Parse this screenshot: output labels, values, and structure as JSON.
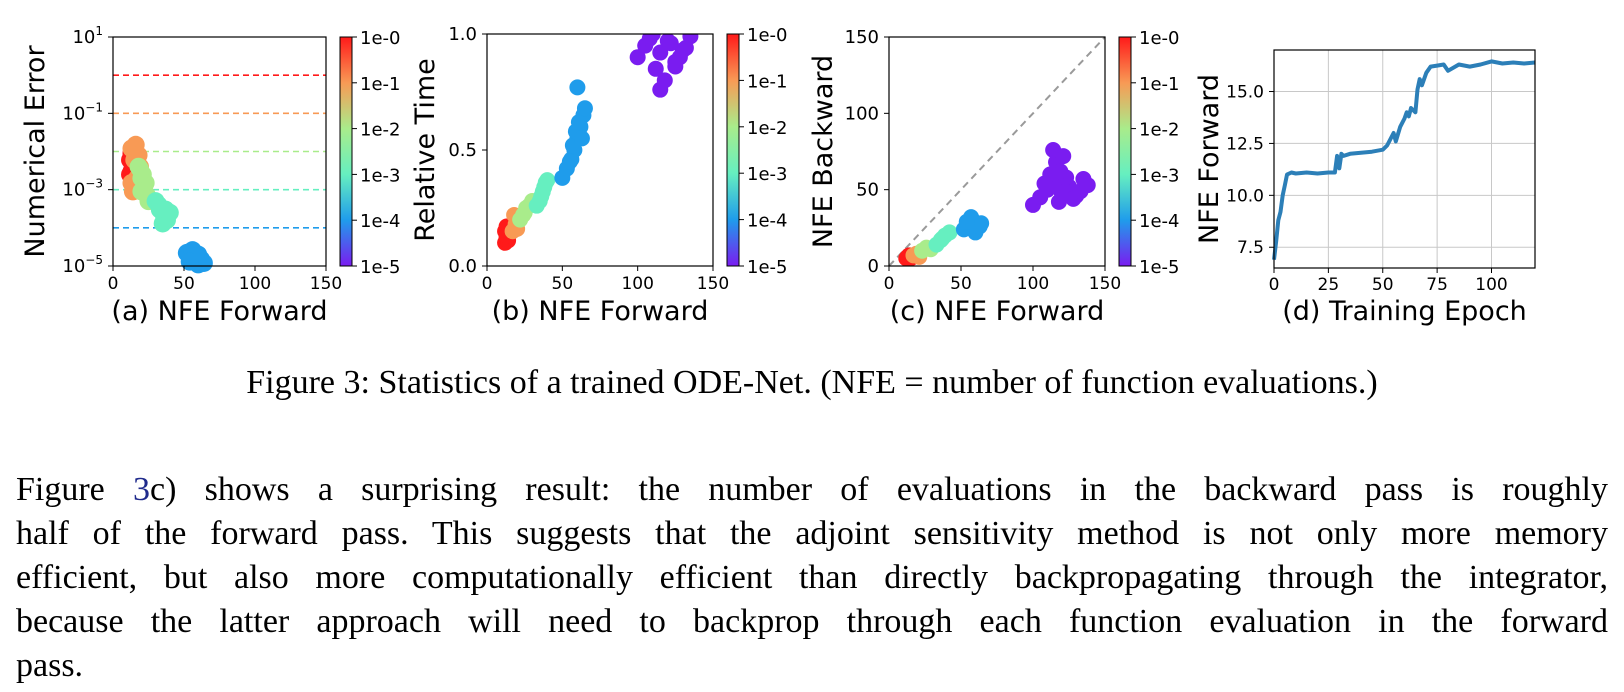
{
  "figure": {
    "caption": "Figure 3: Statistics of a trained ODE-Net. (NFE = number of function evaluations.)",
    "colorbar_ticks": [
      "1e-0",
      "1e-1",
      "1e-2",
      "1e-3",
      "1e-4",
      "1e-5"
    ],
    "colors": {
      "tol_1e0": "#ff1a1a",
      "tol_1e1": "#f89a55",
      "tol_1e2": "#a9ec8b",
      "tol_1e3": "#66efc0",
      "tol_1e4": "#1f9ceb",
      "tol_1e5": "#7a1cf0",
      "line": "#2c7fb8",
      "diagonal": "#9a9a9a"
    }
  },
  "chart_data": [
    {
      "id": "a",
      "type": "scatter",
      "xlabel": "(a) NFE Forward",
      "ylabel": "Numerical Error",
      "xlim": [
        0,
        150
      ],
      "ylim": [
        1e-05,
        10
      ],
      "yscale": "log",
      "xticks": [
        "0",
        "50",
        "100",
        "150"
      ],
      "yticks": [
        {
          "base": "10",
          "exp": "1"
        },
        {
          "base": "10",
          "exp": "−1"
        },
        {
          "base": "10",
          "exp": "−3"
        },
        {
          "base": "10",
          "exp": "−5"
        }
      ],
      "hlines": [
        {
          "y": 1,
          "tol": "1e-0"
        },
        {
          "y": 0.1,
          "tol": "1e-1"
        },
        {
          "y": 0.01,
          "tol": "1e-2"
        },
        {
          "y": 0.001,
          "tol": "1e-3"
        },
        {
          "y": 0.0001,
          "tol": "1e-4"
        }
      ],
      "series": [
        {
          "tol": "1e-0",
          "x": [
            13,
            14,
            12,
            15,
            13,
            14,
            16,
            12,
            13,
            15
          ],
          "y": [
            0.008,
            0.004,
            0.006,
            0.01,
            0.003,
            0.012,
            0.005,
            0.0025,
            0.009,
            0.007
          ]
        },
        {
          "tol": "1e-1",
          "x": [
            13,
            15,
            17,
            14,
            19,
            16,
            13,
            18
          ],
          "y": [
            0.012,
            0.006,
            0.002,
            0.0009,
            0.004,
            0.015,
            0.0015,
            0.008
          ]
        },
        {
          "tol": "1e-2",
          "x": [
            18,
            20,
            22,
            24,
            19,
            25,
            21,
            23,
            20
          ],
          "y": [
            0.004,
            0.002,
            0.0012,
            0.0007,
            0.0035,
            0.0005,
            0.0025,
            0.0015,
            0.0009
          ]
        },
        {
          "tol": "1e-3",
          "x": [
            30,
            33,
            36,
            38,
            40,
            35,
            32,
            37
          ],
          "y": [
            0.0005,
            0.0003,
            0.0002,
            0.00016,
            0.00025,
            0.00013,
            0.0004,
            0.0003
          ]
        },
        {
          "tol": "1e-4",
          "x": [
            52,
            55,
            58,
            60,
            62,
            64,
            56,
            60,
            58,
            54
          ],
          "y": [
            2.2e-05,
            1.6e-05,
            1.3e-05,
            2e-05,
            1.5e-05,
            1.2e-05,
            2.6e-05,
            1.1e-05,
            1.8e-05,
            1.3e-05
          ]
        }
      ]
    },
    {
      "id": "b",
      "type": "scatter",
      "xlabel": "(b) NFE Forward",
      "ylabel": "Relative Time",
      "xlim": [
        0,
        150
      ],
      "ylim": [
        0,
        1
      ],
      "xticks": [
        "0",
        "50",
        "100",
        "150"
      ],
      "yticks": [
        "1.0",
        "0.5",
        "0.0"
      ],
      "series": [
        {
          "tol": "1e-0",
          "x": [
            12,
            13,
            14,
            12,
            13,
            14,
            13
          ],
          "y": [
            0.1,
            0.12,
            0.14,
            0.15,
            0.17,
            0.11,
            0.13
          ]
        },
        {
          "tol": "1e-1",
          "x": [
            17,
            19,
            21,
            18,
            20
          ],
          "y": [
            0.15,
            0.18,
            0.21,
            0.22,
            0.16
          ]
        },
        {
          "tol": "1e-2",
          "x": [
            22,
            25,
            28,
            30,
            26,
            24
          ],
          "y": [
            0.2,
            0.23,
            0.26,
            0.28,
            0.25,
            0.22
          ]
        },
        {
          "tol": "1e-3",
          "x": [
            33,
            36,
            38,
            40,
            35,
            37,
            39
          ],
          "y": [
            0.26,
            0.3,
            0.34,
            0.37,
            0.28,
            0.32,
            0.36
          ]
        },
        {
          "tol": "1e-4",
          "x": [
            50,
            53,
            56,
            58,
            60,
            62,
            64,
            57,
            59,
            61,
            55,
            63,
            65,
            60
          ],
          "y": [
            0.38,
            0.42,
            0.46,
            0.5,
            0.55,
            0.6,
            0.65,
            0.52,
            0.58,
            0.62,
            0.45,
            0.55,
            0.68,
            0.77
          ]
        },
        {
          "tol": "1e-5",
          "x": [
            100,
            105,
            110,
            115,
            120,
            125,
            130,
            135,
            112,
            118,
            122,
            128,
            108,
            115,
            125,
            132
          ],
          "y": [
            0.9,
            0.95,
            1.0,
            0.92,
            0.97,
            0.88,
            0.93,
            0.99,
            0.85,
            0.8,
            0.96,
            0.9,
            0.98,
            0.76,
            0.86,
            0.94
          ]
        }
      ]
    },
    {
      "id": "c",
      "type": "scatter",
      "xlabel": "(c) NFE Forward",
      "ylabel": "NFE Backward",
      "xlim": [
        0,
        150
      ],
      "ylim": [
        0,
        150
      ],
      "xticks": [
        "0",
        "50",
        "100",
        "150"
      ],
      "yticks": [
        "150",
        "100",
        "50",
        "0"
      ],
      "diagonal": true,
      "series": [
        {
          "tol": "1e-0",
          "x": [
            12,
            13,
            14,
            15
          ],
          "y": [
            5,
            6,
            7,
            5
          ]
        },
        {
          "tol": "1e-1",
          "x": [
            17,
            19,
            21
          ],
          "y": [
            7,
            8,
            6
          ]
        },
        {
          "tol": "1e-2",
          "x": [
            23,
            26,
            29
          ],
          "y": [
            10,
            12,
            11
          ]
        },
        {
          "tol": "1e-3",
          "x": [
            33,
            36,
            39,
            42,
            37
          ],
          "y": [
            14,
            17,
            20,
            22,
            18
          ]
        },
        {
          "tol": "1e-4",
          "x": [
            52,
            55,
            58,
            61,
            64,
            57,
            60,
            63,
            54
          ],
          "y": [
            24,
            27,
            30,
            25,
            28,
            32,
            22,
            26,
            29
          ]
        },
        {
          "tol": "1e-5",
          "x": [
            100,
            105,
            110,
            115,
            120,
            125,
            130,
            135,
            112,
            118,
            123,
            128,
            108,
            116,
            121,
            133,
            138,
            114,
            119
          ],
          "y": [
            40,
            45,
            50,
            55,
            48,
            52,
            46,
            57,
            60,
            42,
            58,
            44,
            54,
            68,
            72,
            49,
            53,
            76,
            62
          ]
        }
      ]
    },
    {
      "id": "d",
      "type": "line",
      "xlabel": "(d) Training Epoch",
      "ylabel": "NFE Forward",
      "xlim": [
        0,
        120
      ],
      "ylim": [
        6.5,
        17
      ],
      "grid": true,
      "xticks": [
        "0",
        "25",
        "50",
        "75",
        "100"
      ],
      "yticks": [
        "7.5",
        "10.0",
        "12.5",
        "15.0"
      ],
      "x": [
        0,
        1,
        2,
        3,
        4,
        5,
        6,
        8,
        10,
        15,
        20,
        25,
        28,
        29,
        30,
        31,
        32,
        35,
        40,
        45,
        50,
        52,
        55,
        56,
        58,
        60,
        61,
        62,
        63,
        65,
        66,
        67,
        68,
        70,
        72,
        75,
        78,
        80,
        85,
        90,
        95,
        100,
        105,
        110,
        115,
        120
      ],
      "y": [
        6.9,
        7.8,
        8.8,
        9.2,
        10.0,
        10.5,
        11.0,
        11.1,
        11.05,
        11.1,
        11.05,
        11.1,
        11.1,
        11.9,
        11.3,
        12.0,
        11.9,
        12.0,
        12.05,
        12.1,
        12.2,
        12.4,
        13.0,
        12.6,
        13.3,
        13.7,
        14.0,
        13.8,
        14.2,
        14.0,
        15.1,
        15.6,
        15.3,
        15.9,
        16.2,
        16.25,
        16.3,
        16.0,
        16.3,
        16.2,
        16.3,
        16.45,
        16.35,
        16.4,
        16.35,
        16.4
      ]
    }
  ],
  "paragraph": {
    "lines": [
      {
        "pre": "Figure ",
        "ref": "3",
        "post": "c) shows a surprising result:  the number of evaluations in the backward pass is roughly"
      },
      {
        "pre": "half of the forward pass. This suggests that the adjoint sensitivity method is not only more memory",
        "ref": "",
        "post": ""
      },
      {
        "pre": "efficient, but also more computationally efficient than directly backpropagating through the integrator,",
        "ref": "",
        "post": ""
      },
      {
        "pre": "because the latter approach will need to backprop through each function evaluation in the forward",
        "ref": "",
        "post": ""
      },
      {
        "pre": "pass.",
        "ref": "",
        "post": ""
      }
    ]
  }
}
